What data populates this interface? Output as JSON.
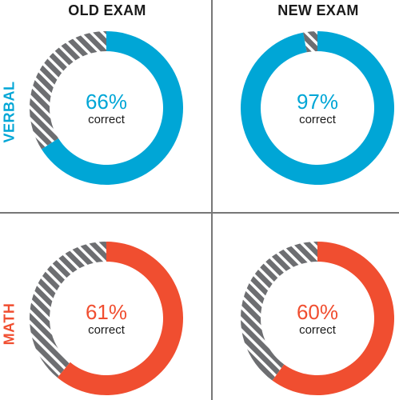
{
  "columns": [
    "OLD EXAM",
    "NEW EXAM"
  ],
  "rows": [
    {
      "label": "VERBAL",
      "color": "#00a6d6"
    },
    {
      "label": "MATH",
      "color": "#f04e30"
    }
  ],
  "remainder_fill": "gray-hatched",
  "chart_data": [
    {
      "type": "pie",
      "row": "VERBAL",
      "column": "OLD EXAM",
      "value": 66,
      "text": "66%",
      "label": "correct"
    },
    {
      "type": "pie",
      "row": "VERBAL",
      "column": "NEW EXAM",
      "value": 97,
      "text": "97%",
      "label": "correct"
    },
    {
      "type": "pie",
      "row": "MATH",
      "column": "OLD EXAM",
      "value": 61,
      "text": "61%",
      "label": "correct"
    },
    {
      "type": "pie",
      "row": "MATH",
      "column": "NEW EXAM",
      "value": 60,
      "text": "60%",
      "label": "correct"
    }
  ]
}
